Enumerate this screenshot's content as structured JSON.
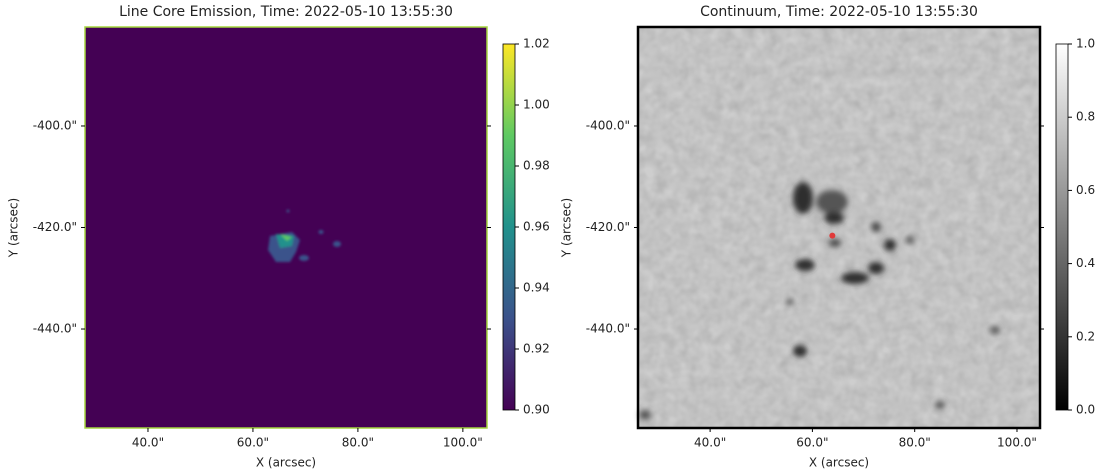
{
  "chart_data": [
    {
      "type": "image",
      "title": "Line Core Emission, Time: 2022-05-10 13:55:30",
      "xlabel": "X (arcsec)",
      "ylabel": "Y (arcsec)",
      "xlim": [
        28,
        104.6
      ],
      "ylim": [
        -459.5,
        -380.5
      ],
      "xticks": [
        {
          "value": 40,
          "label": "40.0\""
        },
        {
          "value": 60,
          "label": "60.0\""
        },
        {
          "value": 80,
          "label": "80.0\""
        },
        {
          "value": 100,
          "label": "100.0\""
        }
      ],
      "yticks": [
        {
          "value": -400,
          "label": "-400.0\""
        },
        {
          "value": -420,
          "label": "-420.0\""
        },
        {
          "value": -440,
          "label": "-440.0\""
        }
      ],
      "colormap": "viridis",
      "clim": [
        0.9,
        1.02
      ],
      "colorbar_ticks": [
        {
          "value": 0.9,
          "label": "0.90"
        },
        0.92,
        0.94,
        0.96,
        0.98,
        {
          "value": 1,
          "label": "1.00"
        },
        1.02
      ]
    },
    {
      "type": "image",
      "title": "Continuum, Time: 2022-05-10 13:55:30",
      "xlabel": "X (arcsec)",
      "ylabel": "Y (arcsec)",
      "xlim": [
        25.9,
        104.5
      ],
      "ylim": [
        -459.5,
        -380.5
      ],
      "xticks": [
        {
          "value": 40,
          "label": "40.0\""
        },
        {
          "value": 60,
          "label": "60.0\""
        },
        {
          "value": 80,
          "label": "80.0\""
        },
        {
          "value": 100,
          "label": "100.0\""
        }
      ],
      "yticks": [
        {
          "value": -400,
          "label": "-400.0\""
        },
        {
          "value": -420,
          "label": "-420.0\""
        },
        {
          "value": -440,
          "label": "-440.0\""
        }
      ],
      "colormap": "gray",
      "clim": [
        0,
        1
      ],
      "colorbar_ticks": [
        {
          "value": 0,
          "label": "0.0"
        },
        0.2,
        0.4,
        0.6,
        0.8,
        {
          "value": 1,
          "label": "1.0"
        }
      ],
      "marker": {
        "x": 63.9,
        "y": -421.6,
        "color": "#e03a3a"
      }
    }
  ]
}
